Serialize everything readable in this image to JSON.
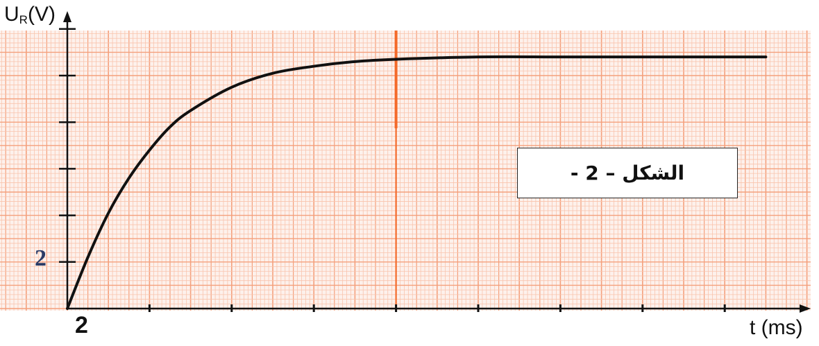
{
  "chart_data": {
    "type": "line",
    "xlabel": "t (ms)",
    "ylabel": {
      "main": "U",
      "sub": "R",
      "unit": "(V)"
    },
    "x_tick_label": "2",
    "y_tick_label": "2",
    "annotation": "الشكل – 2 -",
    "xlim": [
      0,
      17
    ],
    "ylim": [
      0,
      12
    ],
    "x_major_tick_step": 2,
    "y_major_tick_step": 2,
    "grid": true,
    "colors": {
      "grid_minor": "#f9c4ad",
      "grid_major": "#f4a07c",
      "grid_accent": "#f46a2a",
      "curve": "#111111"
    },
    "series": [
      {
        "x": [
          0,
          0.5,
          1,
          1.5,
          2,
          2.5,
          3,
          4,
          5,
          6,
          7,
          8,
          10,
          12,
          14,
          17
        ],
        "y": [
          0,
          2.2,
          4.1,
          5.6,
          6.8,
          7.8,
          8.5,
          9.5,
          10.1,
          10.4,
          10.6,
          10.7,
          10.8,
          10.8,
          10.8,
          10.8
        ]
      }
    ]
  }
}
